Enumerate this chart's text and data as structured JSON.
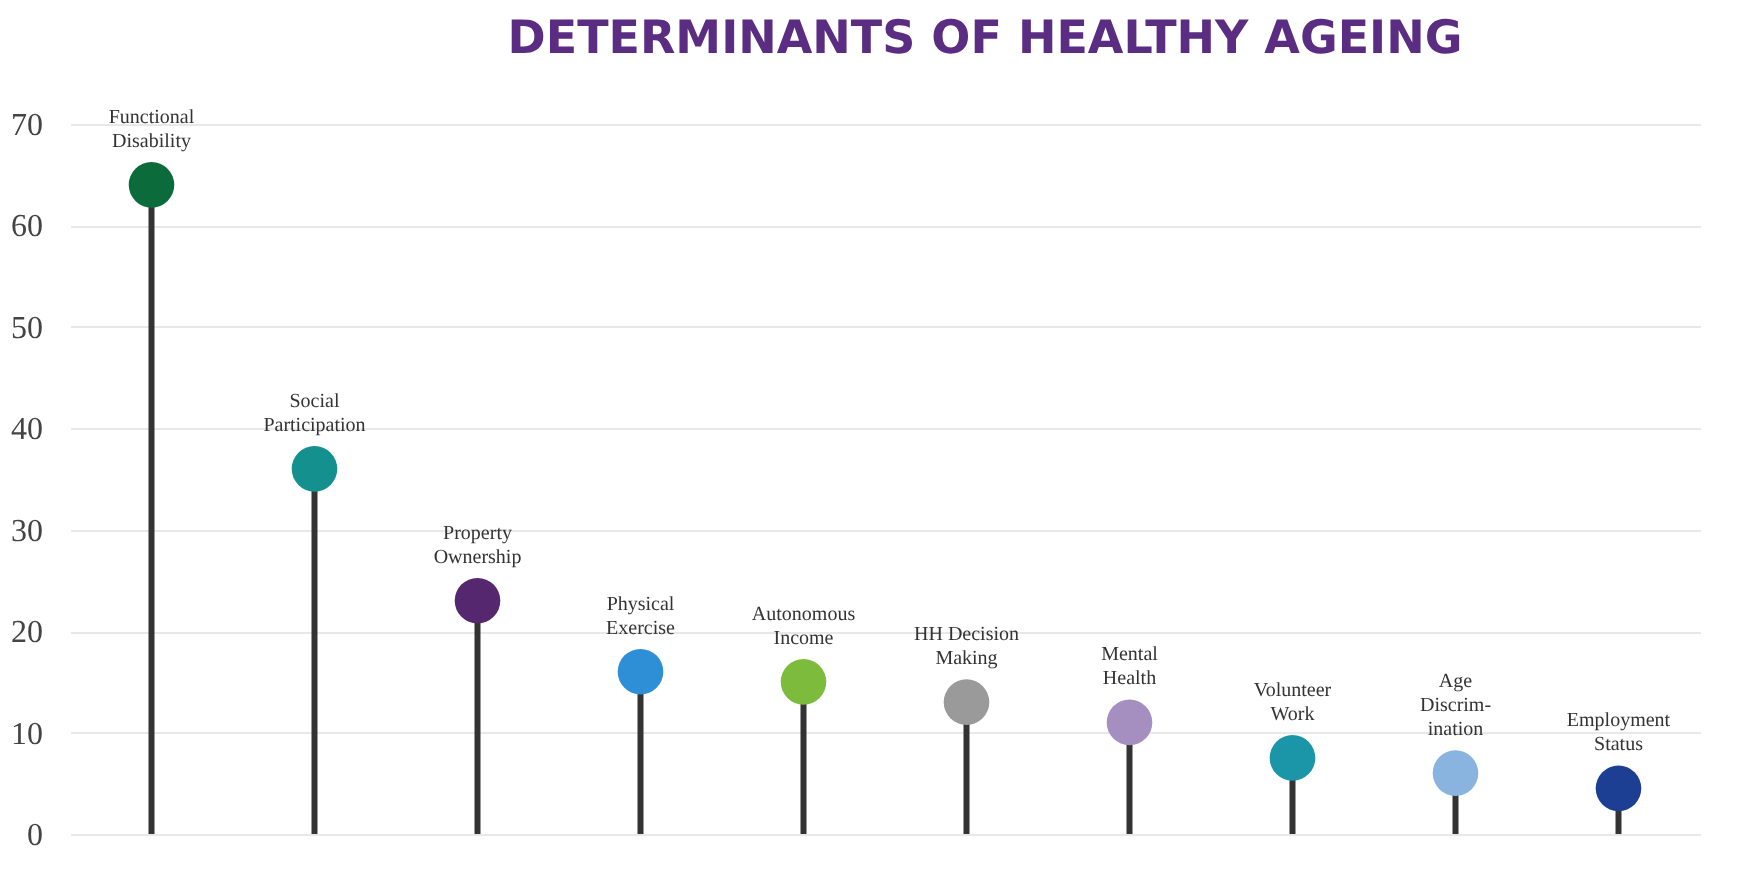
{
  "chart_data": {
    "type": "lollipop",
    "title": "DETERMINANTS OF HEALTHY AGEING",
    "categories": [
      "Functional\nDisability",
      "Social\nParticipation",
      "Property\nOwnership",
      "Physical\nExercise",
      "Autonomous\nIncome",
      "HH Decision\nMaking",
      "Mental\nHealth",
      "Volunteer\nWork",
      "Age\nDiscrim-\nination",
      "Employment\nStatus"
    ],
    "values": [
      64,
      36,
      23,
      16,
      15,
      13,
      11,
      7.5,
      6,
      4.5
    ],
    "colors": [
      "#0b6b3a",
      "#14918f",
      "#55276f",
      "#2e8fd6",
      "#7dbb3c",
      "#9a9a9a",
      "#a58fc0",
      "#1a96a8",
      "#8ab4e0",
      "#1c3f94"
    ],
    "ylim": [
      0,
      70
    ],
    "yticks": [
      0,
      10,
      20,
      30,
      40,
      50,
      60,
      70
    ],
    "grid": "y",
    "tick_labels": "y"
  }
}
